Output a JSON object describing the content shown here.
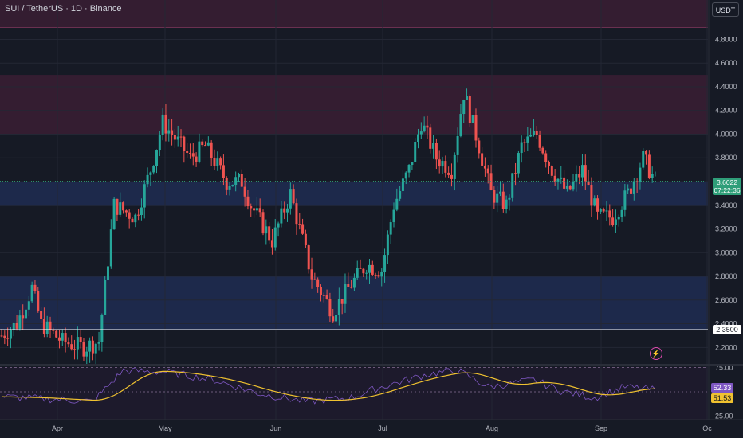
{
  "header": {
    "title": "SUI / TetherUS · 1D · Binance",
    "currency_button": "USDT"
  },
  "price_axis": {
    "labels": [
      "4.8000",
      "4.6000",
      "4.4000",
      "4.2000",
      "4.0000",
      "3.8000",
      "3.6000",
      "3.4000",
      "3.2000",
      "3.0000",
      "2.8000",
      "2.6000",
      "2.4000",
      "2.2000"
    ]
  },
  "current_price": {
    "value": "3.6022",
    "countdown": "07:22:36"
  },
  "level_line": {
    "value": "2.3500"
  },
  "rsi": {
    "axis_labels": [
      "75.00",
      "50.00",
      "25.00"
    ],
    "rsi_value": "52.33",
    "ma_value": "51.53",
    "rsi_color": "#7e57c2",
    "ma_color": "#f0c230"
  },
  "time_axis": {
    "labels": [
      "Apr",
      "May",
      "Jun",
      "Jul",
      "Aug",
      "Sep",
      "Oc"
    ]
  },
  "zones": [
    {
      "kind": "supply",
      "from": 4.9,
      "to": 5.2,
      "color": "#3a1f34"
    },
    {
      "kind": "supply",
      "from": 4.0,
      "to": 4.5,
      "color": "#3a1f34"
    },
    {
      "kind": "demand",
      "from": 3.4,
      "to": 3.6,
      "color": "#1f2d52"
    },
    {
      "kind": "demand",
      "from": 2.35,
      "to": 2.8,
      "color": "#1f2d52"
    }
  ],
  "colors": {
    "up": "#26a69a",
    "down": "#ef5350",
    "background": "#161a25"
  },
  "chart_data": {
    "type": "candlestick",
    "symbol": "SUI / TetherUS",
    "interval": "1D",
    "exchange": "Binance",
    "x": "daily, mid-March to mid-September",
    "anchors": [
      [
        0,
        2.3
      ],
      [
        5,
        2.4
      ],
      [
        10,
        2.7
      ],
      [
        13,
        2.4
      ],
      [
        20,
        2.25
      ],
      [
        27,
        2.2
      ],
      [
        32,
        2.25
      ],
      [
        37,
        3.4
      ],
      [
        44,
        3.3
      ],
      [
        49,
        3.7
      ],
      [
        53,
        4.1
      ],
      [
        62,
        3.8
      ],
      [
        67,
        3.9
      ],
      [
        74,
        3.6
      ],
      [
        79,
        3.6
      ],
      [
        82,
        3.4
      ],
      [
        89,
        3.1
      ],
      [
        95,
        3.5
      ],
      [
        102,
        2.8
      ],
      [
        109,
        2.5
      ],
      [
        114,
        2.7
      ],
      [
        120,
        2.9
      ],
      [
        125,
        2.85
      ],
      [
        129,
        3.4
      ],
      [
        134,
        3.7
      ],
      [
        138,
        4.1
      ],
      [
        143,
        3.8
      ],
      [
        148,
        3.7
      ],
      [
        152,
        4.35
      ],
      [
        157,
        3.9
      ],
      [
        161,
        3.5
      ],
      [
        166,
        3.4
      ],
      [
        171,
        3.9
      ],
      [
        176,
        4.0
      ],
      [
        181,
        3.7
      ],
      [
        186,
        3.5
      ],
      [
        191,
        3.7
      ],
      [
        196,
        3.3
      ],
      [
        201,
        3.3
      ],
      [
        206,
        3.5
      ],
      [
        211,
        3.8
      ],
      [
        215,
        3.6
      ]
    ]
  }
}
